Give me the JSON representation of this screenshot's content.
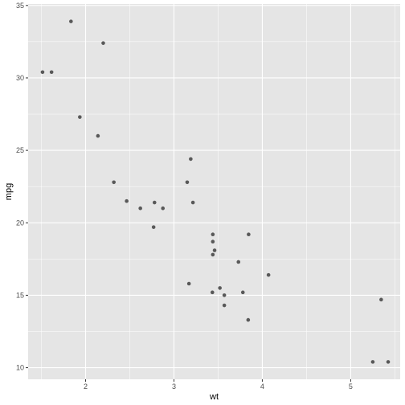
{
  "chart_data": {
    "type": "scatter",
    "title": "",
    "xlabel": "wt",
    "ylabel": "mpg",
    "xlim": [
      1.35,
      5.56
    ],
    "ylim": [
      9.2,
      35.1
    ],
    "x_ticks": [
      2,
      3,
      4,
      5
    ],
    "y_ticks": [
      10,
      15,
      20,
      25,
      30,
      35
    ],
    "x_tick_labels": [
      "2",
      "3",
      "4",
      "5"
    ],
    "y_tick_labels": [
      "10",
      "15",
      "20",
      "25",
      "30",
      "35"
    ],
    "grid": true,
    "legend": "none",
    "colors": {
      "panel": "#e5e5e5",
      "grid": "#ffffff",
      "point": "#595959"
    },
    "points": [
      {
        "x": 2.62,
        "y": 21.0
      },
      {
        "x": 2.875,
        "y": 21.0
      },
      {
        "x": 2.32,
        "y": 22.8
      },
      {
        "x": 3.215,
        "y": 21.4
      },
      {
        "x": 3.44,
        "y": 18.7
      },
      {
        "x": 3.46,
        "y": 18.1
      },
      {
        "x": 3.57,
        "y": 14.3
      },
      {
        "x": 3.19,
        "y": 24.4
      },
      {
        "x": 3.15,
        "y": 22.8
      },
      {
        "x": 3.44,
        "y": 19.2
      },
      {
        "x": 3.44,
        "y": 17.8
      },
      {
        "x": 4.07,
        "y": 16.4
      },
      {
        "x": 3.73,
        "y": 17.3
      },
      {
        "x": 3.78,
        "y": 15.2
      },
      {
        "x": 5.25,
        "y": 10.4
      },
      {
        "x": 5.424,
        "y": 10.4
      },
      {
        "x": 5.345,
        "y": 14.7
      },
      {
        "x": 2.2,
        "y": 32.4
      },
      {
        "x": 1.615,
        "y": 30.4
      },
      {
        "x": 1.835,
        "y": 33.9
      },
      {
        "x": 2.465,
        "y": 21.5
      },
      {
        "x": 3.52,
        "y": 15.5
      },
      {
        "x": 3.435,
        "y": 15.2
      },
      {
        "x": 3.84,
        "y": 13.3
      },
      {
        "x": 3.845,
        "y": 19.2
      },
      {
        "x": 1.935,
        "y": 27.3
      },
      {
        "x": 2.14,
        "y": 26.0
      },
      {
        "x": 1.513,
        "y": 30.4
      },
      {
        "x": 3.17,
        "y": 15.8
      },
      {
        "x": 2.77,
        "y": 19.7
      },
      {
        "x": 3.57,
        "y": 15.0
      },
      {
        "x": 2.78,
        "y": 21.4
      }
    ]
  }
}
